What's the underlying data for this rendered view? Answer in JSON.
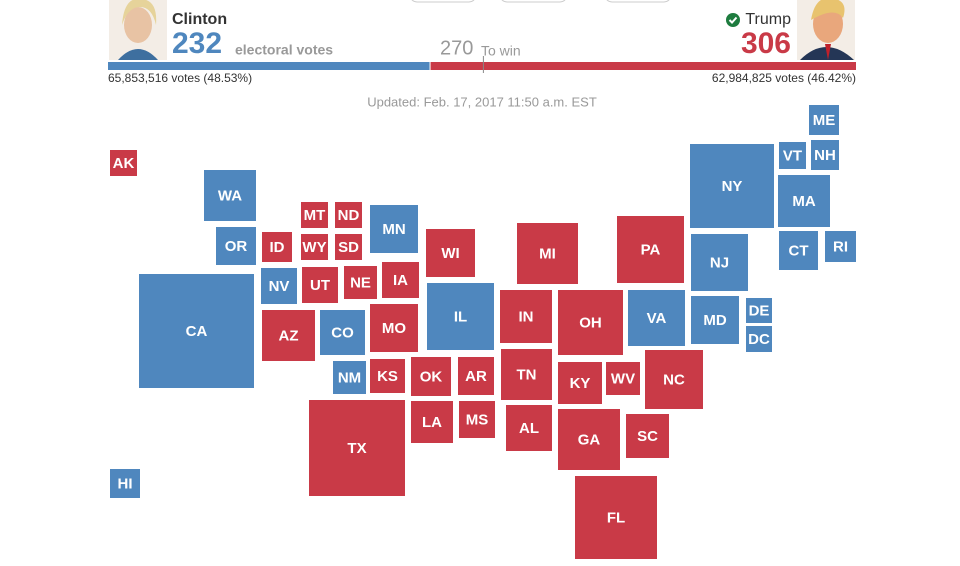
{
  "header": {
    "candidates": [
      {
        "name": "Clinton",
        "electoral_votes": 232,
        "unit": "electoral votes",
        "popular": "65,853,516 votes (48.53%)",
        "color": "#4f87be"
      },
      {
        "name": "Trump",
        "electoral_votes": 306,
        "popular": "62,984,825 votes (46.42%)",
        "color": "#c93a47"
      }
    ],
    "threshold": 270,
    "threshold_label": "To win",
    "updated": "Updated: Feb. 17, 2017 11:50 a.m. EST"
  },
  "map": {
    "states": [
      {
        "label": "AK",
        "color": "#c93a47"
      },
      {
        "label": "HI",
        "color": "#4f87be"
      },
      {
        "label": "WA",
        "color": "#4f87be"
      },
      {
        "label": "OR",
        "color": "#4f87be"
      },
      {
        "label": "CA",
        "color": "#4f87be"
      },
      {
        "label": "NV",
        "color": "#4f87be"
      },
      {
        "label": "ID",
        "color": "#c93a47"
      },
      {
        "label": "MT",
        "color": "#c93a47"
      },
      {
        "label": "ND",
        "color": "#c93a47"
      },
      {
        "label": "WY",
        "color": "#c93a47"
      },
      {
        "label": "SD",
        "color": "#c93a47"
      },
      {
        "label": "UT",
        "color": "#c93a47"
      },
      {
        "label": "NE",
        "color": "#c93a47"
      },
      {
        "label": "MN",
        "color": "#4f87be"
      },
      {
        "label": "IA",
        "color": "#c93a47"
      },
      {
        "label": "CO",
        "color": "#4f87be"
      },
      {
        "label": "AZ",
        "color": "#c93a47"
      },
      {
        "label": "NM",
        "color": "#4f87be"
      },
      {
        "label": "KS",
        "color": "#c93a47"
      },
      {
        "label": "MO",
        "color": "#c93a47"
      },
      {
        "label": "OK",
        "color": "#c93a47"
      },
      {
        "label": "AR",
        "color": "#c93a47"
      },
      {
        "label": "TX",
        "color": "#c93a47"
      },
      {
        "label": "LA",
        "color": "#c93a47"
      },
      {
        "label": "MS",
        "color": "#c93a47"
      },
      {
        "label": "WI",
        "color": "#c93a47"
      },
      {
        "label": "IL",
        "color": "#4f87be"
      },
      {
        "label": "MI",
        "color": "#c93a47"
      },
      {
        "label": "IN",
        "color": "#c93a47"
      },
      {
        "label": "OH",
        "color": "#c93a47"
      },
      {
        "label": "KY",
        "color": "#c93a47"
      },
      {
        "label": "TN",
        "color": "#c93a47"
      },
      {
        "label": "AL",
        "color": "#c93a47"
      },
      {
        "label": "GA",
        "color": "#c93a47"
      },
      {
        "label": "FL",
        "color": "#c93a47"
      },
      {
        "label": "WV",
        "color": "#c93a47"
      },
      {
        "label": "SC",
        "color": "#c93a47"
      },
      {
        "label": "NC",
        "color": "#c93a47"
      },
      {
        "label": "VA",
        "color": "#4f87be"
      },
      {
        "label": "PA",
        "color": "#c93a47"
      },
      {
        "label": "MD",
        "color": "#4f87be"
      },
      {
        "label": "DE",
        "color": "#4f87be"
      },
      {
        "label": "DC",
        "color": "#4f87be"
      },
      {
        "label": "NJ",
        "color": "#4f87be"
      },
      {
        "label": "NY",
        "color": "#4f87be"
      },
      {
        "label": "CT",
        "color": "#4f87be"
      },
      {
        "label": "RI",
        "color": "#4f87be"
      },
      {
        "label": "MA",
        "color": "#4f87be"
      },
      {
        "label": "VT",
        "color": "#4f87be"
      },
      {
        "label": "NH",
        "color": "#4f87be"
      },
      {
        "label": "ME",
        "color": "#4f87be"
      }
    ]
  }
}
